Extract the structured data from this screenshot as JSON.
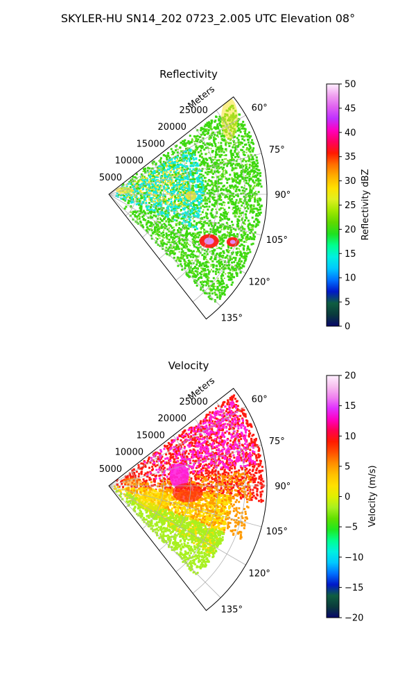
{
  "suptitle": "SKYLER-HU  SN14_202  0723_2.005 UTC Elevation 08°",
  "colors": {
    "grid": "#b0b0b0",
    "edge": "#000000",
    "refl_base": "#3cd80f",
    "refl_low": "#17e8e0",
    "refl_mid": "#f8e22a",
    "refl_core": "#ff1a1a",
    "refl_peak": "#e08af0",
    "vel_red": "#ff1a10",
    "vel_magenta": "#ff22dd",
    "vel_yellow": "#ffdd00",
    "vel_orange": "#ff9a00",
    "vel_green": "#a8f020"
  },
  "chart_data": [
    {
      "type": "heatmap",
      "projection": "polar-sector",
      "title": "Reflectivity",
      "radial_label": "Meters",
      "radial_ticks": [
        "5000",
        "10000",
        "15000",
        "20000",
        "25000"
      ],
      "radial_values": [
        5000,
        10000,
        15000,
        20000,
        25000
      ],
      "rmax": 29000,
      "angular_range": [
        52,
        142
      ],
      "angular_ticks": [
        "60°",
        "75°",
        "90°",
        "105°",
        "120°",
        "135°"
      ],
      "angular_values": [
        60,
        75,
        90,
        105,
        120,
        135
      ],
      "grid": true,
      "colorbar": {
        "label": "Reflectivity dBZ",
        "range": [
          0,
          50
        ],
        "ticks": [
          "0",
          "5",
          "10",
          "15",
          "20",
          "25",
          "30",
          "35",
          "40",
          "45",
          "50"
        ],
        "tick_values": [
          0,
          5,
          10,
          15,
          20,
          25,
          30,
          35,
          40,
          45,
          50
        ],
        "stops": [
          "#08066a",
          "#0a3a3c",
          "#0e5e40",
          "#0018c8",
          "#0070ff",
          "#00c8ff",
          "#00f0e0",
          "#00ff90",
          "#20e020",
          "#60d800",
          "#a0e800",
          "#e0f020",
          "#ffe000",
          "#ffb000",
          "#ff7000",
          "#ff1a00",
          "#ff0060",
          "#ff00c0",
          "#c030ff",
          "#e060f0",
          "#f0a0f0",
          "#fff0ff"
        ]
      }
    },
    {
      "type": "heatmap",
      "projection": "polar-sector",
      "title": "Velocity",
      "radial_label": "Meters",
      "radial_ticks": [
        "5000",
        "10000",
        "15000",
        "20000",
        "25000"
      ],
      "radial_values": [
        5000,
        10000,
        15000,
        20000,
        25000
      ],
      "rmax": 29000,
      "angular_range": [
        52,
        142
      ],
      "angular_ticks": [
        "60°",
        "75°",
        "90°",
        "105°",
        "120°",
        "135°"
      ],
      "angular_values": [
        60,
        75,
        90,
        105,
        120,
        135
      ],
      "grid": true,
      "colorbar": {
        "label": "Velocity (m/s)",
        "range": [
          -20,
          20
        ],
        "ticks": [
          "−20",
          "−15",
          "−10",
          "−5",
          "0",
          "5",
          "10",
          "15",
          "20"
        ],
        "tick_values": [
          -20,
          -15,
          -10,
          -5,
          0,
          5,
          10,
          15,
          20
        ],
        "stops": [
          "#08066a",
          "#0a3a3c",
          "#0e5e40",
          "#0018c8",
          "#0070ff",
          "#00c8ff",
          "#00f0e0",
          "#00ff90",
          "#20e820",
          "#60e000",
          "#a8f020",
          "#e0f000",
          "#ffe000",
          "#ffc000",
          "#ff9000",
          "#ff5000",
          "#ff1a00",
          "#ff0050",
          "#ff00c0",
          "#e030ff",
          "#f080f0",
          "#f8c0f0",
          "#fff0ff"
        ]
      }
    }
  ]
}
